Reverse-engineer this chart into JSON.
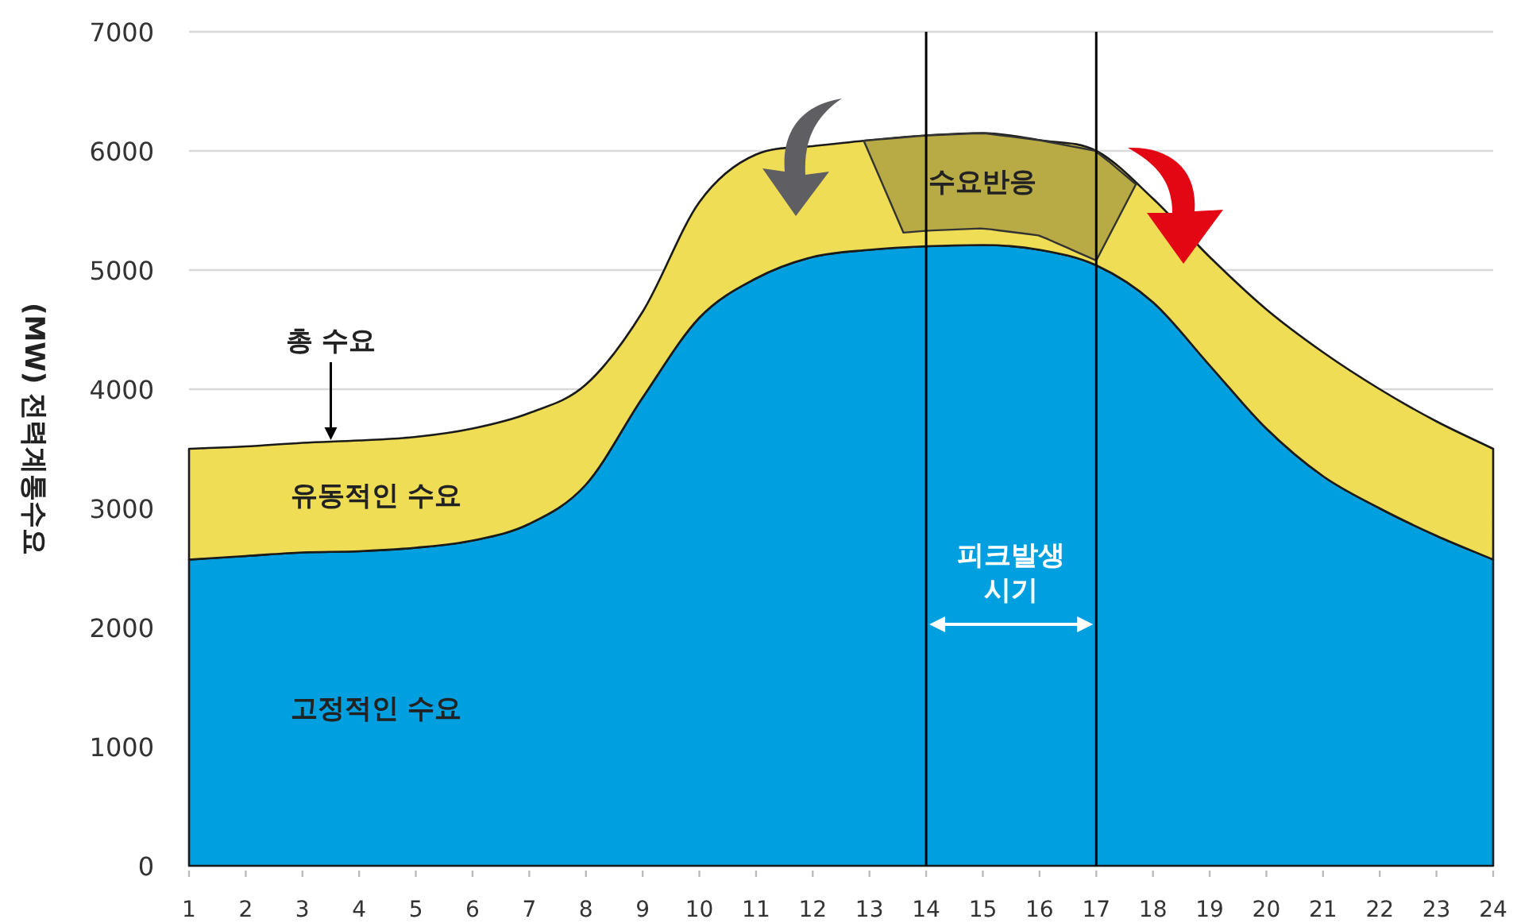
{
  "chart_data": {
    "type": "area",
    "stacked": true,
    "ylabel": "(MW) 전력계통수요",
    "x": [
      1,
      2,
      3,
      4,
      5,
      6,
      7,
      8,
      9,
      10,
      11,
      12,
      13,
      14,
      15,
      16,
      17,
      18,
      19,
      20,
      21,
      22,
      23,
      24
    ],
    "series": [
      {
        "name": "고정적인 수요",
        "color": "#00a0e0",
        "values": [
          2570,
          2600,
          2630,
          2640,
          2670,
          2730,
          2870,
          3200,
          3930,
          4600,
          4930,
          5110,
          5170,
          5200,
          5210,
          5170,
          5040,
          4730,
          4200,
          3670,
          3270,
          3000,
          2770,
          2570
        ]
      },
      {
        "name": "유동적인 수요",
        "color": "#eedd55",
        "values": [
          930,
          920,
          920,
          930,
          930,
          940,
          930,
          840,
          720,
          970,
          1040,
          930,
          920,
          930,
          940,
          920,
          960,
          870,
          910,
          1000,
          1040,
          1000,
          960,
          930
        ]
      }
    ],
    "xlim": [
      1,
      24
    ],
    "xticks": [
      1,
      2,
      3,
      4,
      5,
      6,
      7,
      8,
      9,
      10,
      11,
      12,
      13,
      14,
      15,
      16,
      17,
      18,
      19,
      20,
      21,
      22,
      23,
      24
    ],
    "ylim": [
      0,
      7000
    ],
    "yticks": [
      0,
      1000,
      2000,
      3000,
      4000,
      5000,
      6000,
      7000
    ],
    "grid": "y",
    "ref_lines": [
      {
        "axis": "x",
        "value": 14,
        "label": null,
        "color": "#000000"
      },
      {
        "axis": "x",
        "value": 17,
        "label": null,
        "color": "#000000"
      }
    ],
    "annotations": [
      {
        "text": "총 수요",
        "x": 3.5,
        "y": 3560
      },
      "수요반응",
      "피크발생 시기"
    ]
  }
}
